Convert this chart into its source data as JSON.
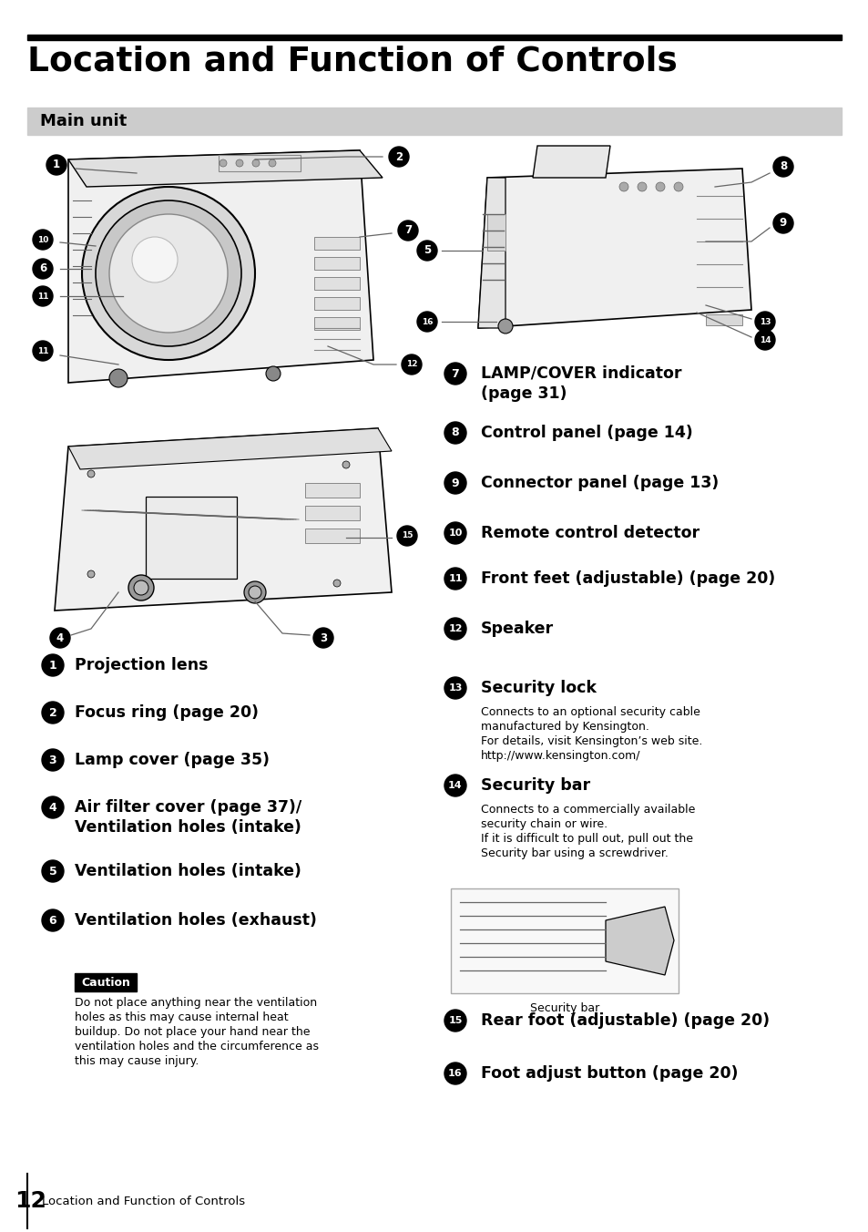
{
  "title": "Location and Function of Controls",
  "section": "Main unit",
  "page_num": "12",
  "page_footer": "Location and Function of Controls",
  "bg_color": "#ffffff",
  "left_items": [
    {
      "num": "1",
      "text": "Projection lens",
      "lines": 1
    },
    {
      "num": "2",
      "text": "Focus ring (page 20)",
      "lines": 1
    },
    {
      "num": "3",
      "text": "Lamp cover (page 35)",
      "lines": 1
    },
    {
      "num": "4",
      "text": "Air filter cover (page 37)/",
      "text2": "Ventilation holes (intake)",
      "lines": 2
    },
    {
      "num": "5",
      "text": "Ventilation holes (intake)",
      "lines": 1
    },
    {
      "num": "6",
      "text": "Ventilation holes (exhaust)",
      "lines": 1
    }
  ],
  "right_items": [
    {
      "num": "7",
      "text": "LAMP/COVER indicator",
      "text2": "(page 31)",
      "lines": 2
    },
    {
      "num": "8",
      "text": "Control panel (page 14)",
      "lines": 1
    },
    {
      "num": "9",
      "text": "Connector panel (page 13)",
      "lines": 1
    },
    {
      "num": "10",
      "text": "Remote control detector",
      "lines": 1
    },
    {
      "num": "11",
      "text": "Front feet (adjustable) (page 20)",
      "lines": 1
    },
    {
      "num": "12",
      "text": "Speaker",
      "lines": 1
    },
    {
      "num": "13",
      "text": "Security lock",
      "lines": 1,
      "subtext": [
        "Connects to an optional security cable",
        "manufactured by Kensington.",
        "For details, visit Kensington’s web site.",
        "http://www.kensington.com/"
      ]
    },
    {
      "num": "14",
      "text": "Security bar",
      "lines": 1,
      "subtext": [
        "Connects to a commercially available",
        "security chain or wire.",
        "If it is difficult to pull out, pull out the",
        "Security bar using a screwdriver."
      ]
    },
    {
      "num": "15",
      "text": "Rear foot (adjustable) (page 20)",
      "lines": 1
    },
    {
      "num": "16",
      "text": "Foot adjust button (page 20)",
      "lines": 1
    }
  ],
  "caution_title": "Caution",
  "caution_lines": [
    "Do not place anything near the ventilation",
    "holes as this may cause internal heat",
    "buildup. Do not place your hand near the",
    "ventilation holes and the circumference as",
    "this may cause injury."
  ],
  "security_bar_caption": "Security bar"
}
